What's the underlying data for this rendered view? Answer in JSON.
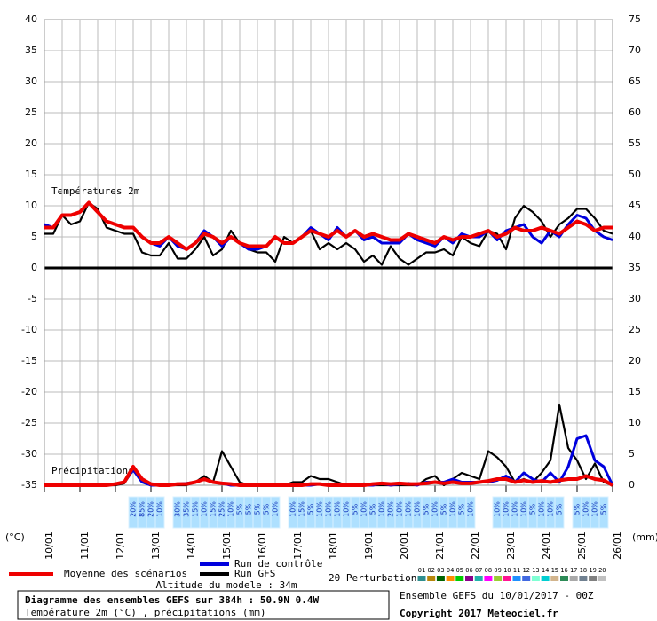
{
  "chart_data": {
    "type": "line",
    "title": "Diagramme des ensembles GEFS sur 384h : 50.9N 0.4W",
    "subtitle": "Température 2m (°C) , précipitations (mm)",
    "temp_label": "Températures 2m",
    "precip_label": "Précipitations",
    "ylabel": "(°C)",
    "y2label": "(mm)",
    "altitude": "Altitude du modele : 34m",
    "run": "Ensemble GEFS du 10/01/2017 - 00Z",
    "copyright": "Copyright 2017 Meteociel.fr",
    "grid": true,
    "ylim": [
      -35,
      40
    ],
    "yticks": [
      -35,
      -30,
      -25,
      -20,
      -15,
      -10,
      -5,
      0,
      5,
      10,
      15,
      20,
      25,
      30,
      35,
      40
    ],
    "y2lim": [
      0,
      75
    ],
    "y2ticks": [
      0,
      5,
      10,
      15,
      20,
      25,
      30,
      35,
      40,
      45,
      50,
      55,
      60,
      65,
      70,
      75
    ],
    "xlim": [
      0,
      384
    ],
    "xticks": [
      {
        "value": 0,
        "label": "10/01"
      },
      {
        "value": 24,
        "label": "11/01"
      },
      {
        "value": 48,
        "label": "12/01"
      },
      {
        "value": 72,
        "label": "13/01"
      },
      {
        "value": 96,
        "label": "14/01"
      },
      {
        "value": 120,
        "label": "15/01"
      },
      {
        "value": 144,
        "label": "16/01"
      },
      {
        "value": 168,
        "label": "17/01"
      },
      {
        "value": 192,
        "label": "18/01"
      },
      {
        "value": 216,
        "label": "19/01"
      },
      {
        "value": 240,
        "label": "20/01"
      },
      {
        "value": 264,
        "label": "21/01"
      },
      {
        "value": 288,
        "label": "22/01"
      },
      {
        "value": 312,
        "label": "23/01"
      },
      {
        "value": 336,
        "label": "24/01"
      },
      {
        "value": 360,
        "label": "25/01"
      },
      {
        "value": 384,
        "label": "26/01"
      }
    ],
    "x": [
      0,
      6,
      12,
      18,
      24,
      30,
      36,
      42,
      48,
      54,
      60,
      66,
      72,
      78,
      84,
      90,
      96,
      102,
      108,
      114,
      120,
      126,
      132,
      138,
      144,
      150,
      156,
      162,
      168,
      174,
      180,
      186,
      192,
      198,
      204,
      210,
      216,
      222,
      228,
      234,
      240,
      246,
      252,
      258,
      264,
      270,
      276,
      282,
      288,
      294,
      300,
      306,
      312,
      318,
      324,
      330,
      336,
      342,
      348,
      354,
      360,
      366,
      372,
      378,
      384
    ],
    "series": [
      {
        "name": "Moyenne des scénarios",
        "color": "#ee0000",
        "values": [
          6.5,
          6.5,
          8.5,
          8.5,
          9,
          10.5,
          9,
          7.5,
          7,
          6.5,
          6.5,
          5,
          4,
          4,
          5,
          4,
          3,
          4,
          5.5,
          5,
          4,
          5,
          4,
          3.5,
          3.5,
          3.5,
          5,
          4,
          4,
          5,
          6,
          5.5,
          5,
          6,
          5,
          6,
          5,
          5.5,
          5,
          4.5,
          4.5,
          5.5,
          5,
          4.5,
          4,
          5,
          4.5,
          5,
          5,
          5.5,
          6,
          5,
          5.5,
          6.5,
          6,
          6,
          6.5,
          6,
          5.5,
          6.5,
          7.5,
          7,
          6,
          6.5,
          6.5
        ],
        "precip": [
          0,
          0,
          0,
          0,
          0,
          0,
          0,
          0,
          0.2,
          0.5,
          3,
          1,
          0.2,
          0,
          0,
          0.2,
          0.2,
          0.5,
          1,
          0.5,
          0.3,
          0.2,
          0,
          0,
          0,
          0,
          0,
          0,
          0,
          0,
          0.2,
          0.2,
          0,
          0,
          0,
          0,
          0,
          0.2,
          0.3,
          0.2,
          0.3,
          0.2,
          0.2,
          0.3,
          0.5,
          0.3,
          0.5,
          0.3,
          0.3,
          0.5,
          0.7,
          1,
          1,
          0.5,
          0.8,
          0.5,
          0.7,
          0.5,
          0.8,
          1,
          1,
          1.5,
          1,
          0.8,
          0
        ]
      },
      {
        "name": "Run de contrôle",
        "color": "#0000dd",
        "values": [
          7,
          6.5,
          8.5,
          8.5,
          9,
          10.5,
          9,
          7.5,
          7,
          6.5,
          6.5,
          5,
          4,
          3.5,
          5,
          3.5,
          3,
          4,
          6,
          5,
          3.5,
          5,
          4,
          3,
          3,
          3.5,
          5,
          4,
          4,
          5,
          6.5,
          5.5,
          4.5,
          6.5,
          5,
          6,
          4.5,
          5,
          4,
          4,
          4,
          5.5,
          4.5,
          4,
          3.5,
          5,
          4,
          5.5,
          5,
          5,
          6,
          4.5,
          6,
          6.5,
          7,
          5,
          4,
          6,
          5,
          7,
          8.5,
          8,
          6,
          5,
          4.5
        ],
        "precip": [
          0,
          0,
          0,
          0,
          0,
          0,
          0,
          0,
          0.2,
          0.5,
          2.5,
          0.5,
          0,
          0,
          0,
          0.2,
          0.3,
          0.5,
          1,
          0.5,
          0.3,
          0,
          0,
          0,
          0,
          0,
          0,
          0,
          0,
          0,
          0,
          0.2,
          0,
          0,
          0,
          0,
          0,
          0,
          0.3,
          0,
          0.2,
          0.3,
          0,
          0.5,
          0.5,
          0.5,
          1,
          0.5,
          0.5,
          0.5,
          0.5,
          0.8,
          1.5,
          0.5,
          2,
          1,
          0.5,
          2,
          0.5,
          3,
          7.5,
          8,
          4,
          3,
          0
        ]
      },
      {
        "name": "Run GFS",
        "color": "#000000",
        "values": [
          5.5,
          5.5,
          8.5,
          7,
          7.5,
          10.5,
          9.5,
          6.5,
          6,
          5.5,
          5.5,
          2.5,
          2,
          2,
          4,
          1.5,
          1.5,
          3,
          5,
          2,
          3,
          6,
          4,
          3,
          2.5,
          2.5,
          1,
          5,
          4,
          5,
          6,
          3,
          4,
          3,
          4,
          3,
          1,
          2,
          0.5,
          3.5,
          1.5,
          0.5,
          1.5,
          2.5,
          2.5,
          3,
          2,
          5,
          4,
          3.5,
          6,
          5.5,
          3,
          8,
          10,
          9,
          7.5,
          5,
          7,
          8,
          9.5,
          9.5,
          8,
          6,
          5.5
        ],
        "precip": [
          0,
          0,
          0,
          0,
          0,
          0,
          0,
          0,
          0,
          0.3,
          2.5,
          0.5,
          0,
          0,
          0,
          0,
          0,
          0.5,
          1.5,
          0.5,
          5.5,
          3,
          0.5,
          0,
          0,
          0,
          0,
          0,
          0.5,
          0.5,
          1.5,
          1,
          1,
          0.5,
          0,
          0,
          0.3,
          0,
          0,
          0,
          0,
          0,
          0,
          1,
          1.5,
          0,
          1,
          2,
          1.5,
          1,
          5.5,
          4.5,
          3,
          0.5,
          1,
          0.5,
          2,
          4,
          13,
          6,
          4,
          1,
          3.5,
          0.5,
          0
        ]
      }
    ],
    "perturbations": {
      "label": "20 Perturbations",
      "names": [
        "01",
        "02",
        "03",
        "04",
        "05",
        "06",
        "07",
        "08",
        "09",
        "10",
        "11",
        "12",
        "13",
        "14",
        "15",
        "16",
        "17",
        "18",
        "19",
        "20"
      ],
      "colors": [
        "#2f8f8f",
        "#b8860b",
        "#006400",
        "#ff8c00",
        "#00cc00",
        "#8b008b",
        "#20b2aa",
        "#ff00ff",
        "#9acd32",
        "#ff1493",
        "#1e90ff",
        "#4169e1",
        "#7fffd4",
        "#00ced1",
        "#d2b48c",
        "#2e8b57",
        "#a9a9a9",
        "#708090",
        "#808080",
        "#c0c0c0"
      ]
    },
    "snow": {
      "x": [
        60,
        66,
        72,
        78,
        90,
        96,
        102,
        108,
        114,
        120,
        126,
        132,
        138,
        144,
        150,
        156,
        168,
        174,
        180,
        186,
        192,
        198,
        204,
        210,
        216,
        222,
        228,
        234,
        240,
        246,
        252,
        258,
        264,
        270,
        276,
        282,
        288,
        306,
        312,
        318,
        324,
        330,
        336,
        342,
        348,
        360,
        366,
        372,
        378
      ],
      "values": [
        20,
        85,
        20,
        10,
        30,
        35,
        15,
        10,
        15,
        25,
        10,
        5,
        5,
        5,
        5,
        10,
        10,
        15,
        5,
        10,
        10,
        10,
        10,
        5,
        10,
        5,
        10,
        20,
        10,
        10,
        10,
        5,
        10,
        5,
        10,
        5,
        10,
        10,
        10,
        10,
        10,
        5,
        10,
        10,
        5,
        5,
        10,
        10,
        5
      ],
      "value_labels": [
        "20%",
        "85%",
        "20%",
        "10%",
        "30%",
        "35%",
        "15%",
        "10%",
        "15%",
        "25%",
        "10%",
        "5%",
        "5%",
        "5%",
        "5%",
        "10%",
        "10%",
        "15%",
        "5%",
        "10%",
        "10%",
        "10%",
        "10%",
        "5%",
        "10%",
        "5%",
        "10%",
        "20%",
        "10%",
        "10%",
        "10%",
        "5%",
        "10%",
        "5%",
        "10%",
        "5%",
        "10%",
        "10%",
        "10%",
        "10%",
        "10%",
        "5%",
        "10%",
        "10%",
        "5%",
        "5%",
        "10%",
        "10%",
        "5%"
      ]
    }
  }
}
